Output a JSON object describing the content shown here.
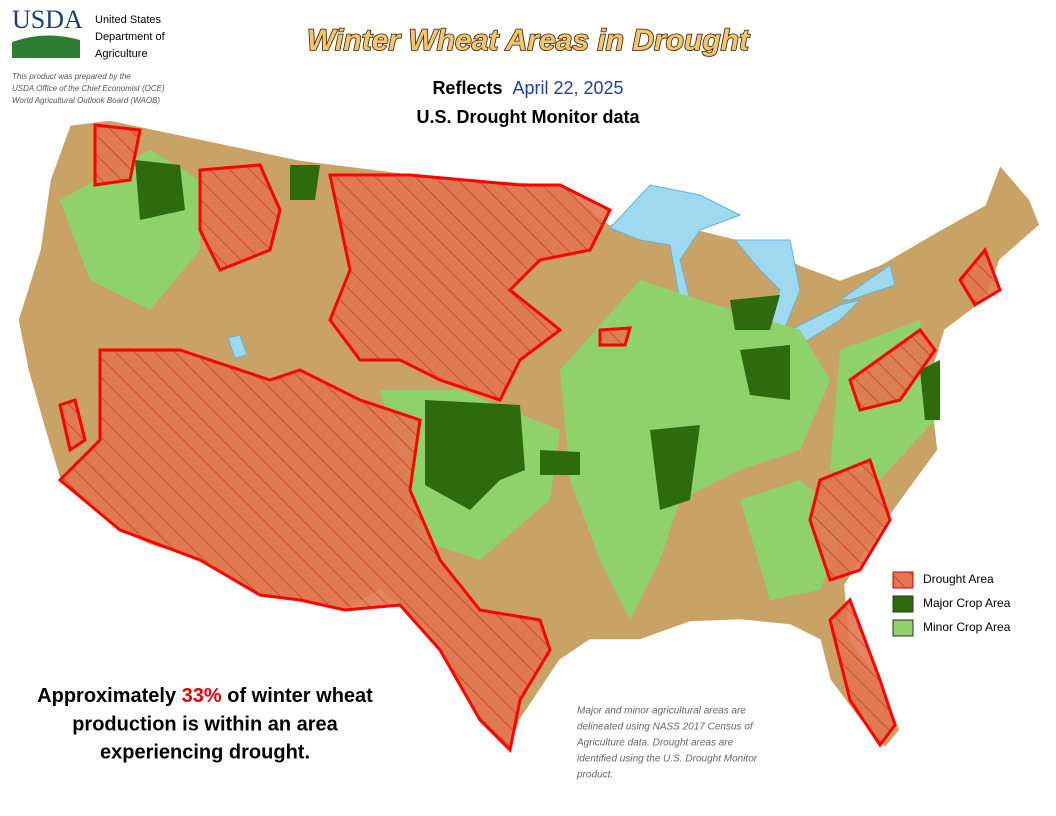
{
  "header": {
    "logo": "USDA",
    "agency": [
      "United States",
      "Department of",
      "Agriculture"
    ],
    "credit": [
      "This product was prepared by the",
      "USDA Office of the Chief Economist (OCE)",
      "World Agricultural Outlook Board (WAOB)"
    ]
  },
  "title": "Winter Wheat Areas in Drought",
  "subtitle": {
    "prefix": "Reflects",
    "date": "April 22, 2025",
    "source": "U.S. Drought Monitor data"
  },
  "legend": [
    "Drought Area",
    "Major Crop Area",
    "Minor Crop Area"
  ],
  "summary": {
    "lines": [
      {
        "before": "Approximately ",
        "highlight": "33%",
        "after": " of winter wheat"
      },
      {
        "before": "production is within an area"
      },
      {
        "before": "experiencing drought."
      }
    ]
  },
  "note": [
    "Major and minor agricultural areas are",
    "delineated using NASS 2017 Census of",
    "Agriculture data.  Drought areas are",
    "identified using the U.S. Drought Monitor",
    "product."
  ]
}
